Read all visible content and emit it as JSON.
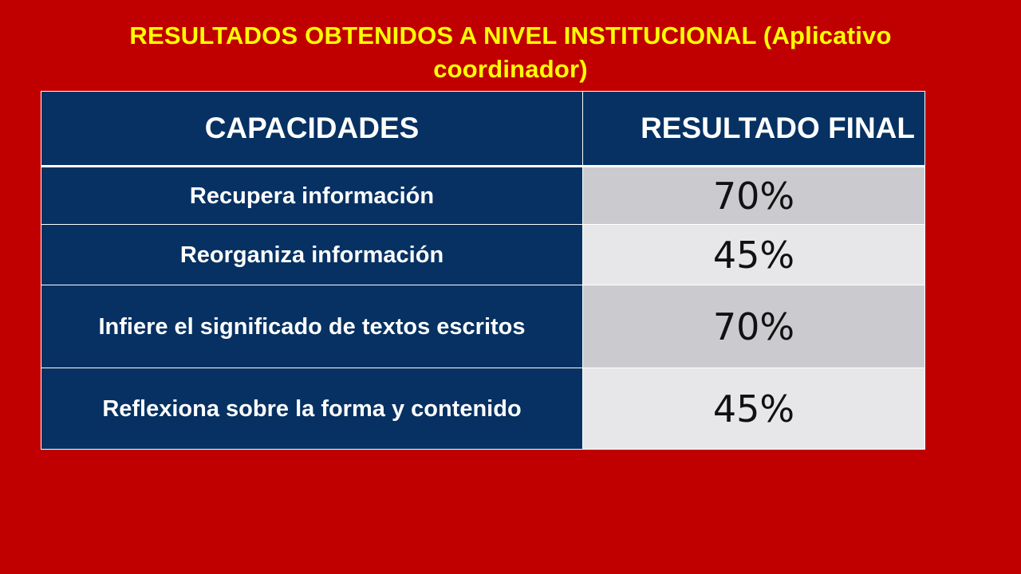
{
  "slide": {
    "title": "RESULTADOS OBTENIDOS A NIVEL INSTITUCIONAL (Aplicativo coordinador)"
  },
  "table": {
    "headers": [
      "CAPACIDADES",
      "RESULTADO FINAL"
    ],
    "rows": [
      {
        "capacity": "Recupera información",
        "result": "70%"
      },
      {
        "capacity": "Reorganiza información",
        "result": "45%"
      },
      {
        "capacity": "Infiere el significado de textos escritos",
        "result": "70%"
      },
      {
        "capacity": "Reflexiona sobre la forma y contenido",
        "result": "45%"
      }
    ]
  },
  "colors": {
    "background": "#c00000",
    "title": "#ffff00",
    "header_bg": "#063162",
    "row_shade_1": "#cbcbcf",
    "row_shade_2": "#e7e7e9"
  }
}
